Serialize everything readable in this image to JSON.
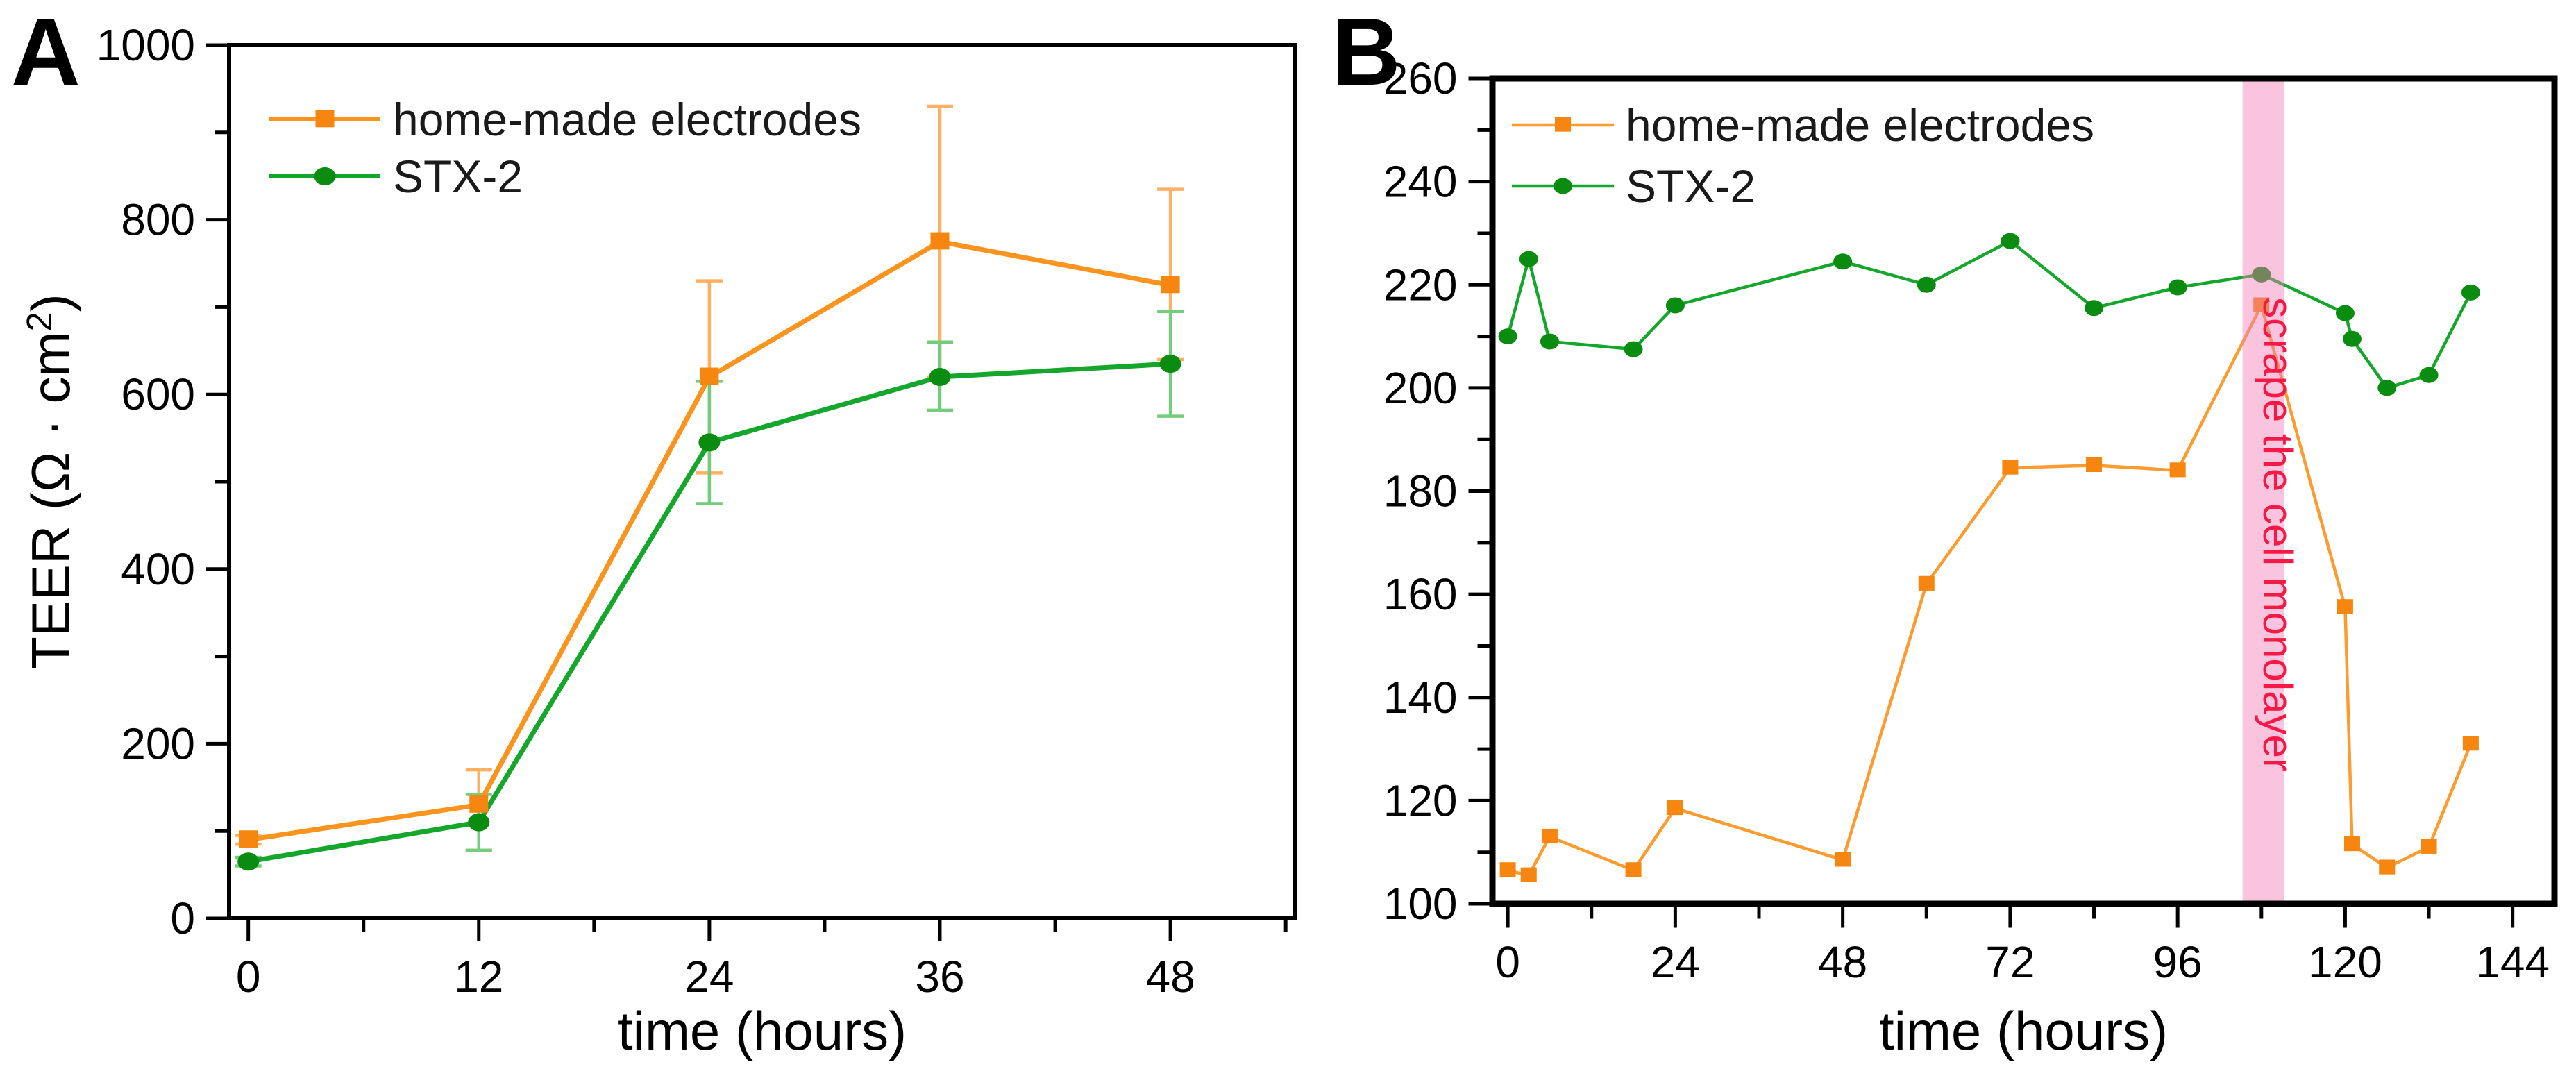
{
  "figure": {
    "background": "#ffffff",
    "panels": [
      {
        "label": "A"
      },
      {
        "label": "B"
      }
    ]
  },
  "chart_data": [
    {
      "type": "line",
      "panel": "A",
      "title": "",
      "xlabel": "time (hours)",
      "ylabel": "TEER (Ω · cm²)",
      "ylabel_parts": {
        "pre": "TEER (Ω · cm",
        "sup": "2",
        "post": ")"
      },
      "xlim": [
        -1,
        54.5
      ],
      "ylim": [
        0,
        1000
      ],
      "x_major_ticks": [
        0,
        12,
        24,
        36,
        48
      ],
      "x_minor_ticks": [
        6,
        18,
        30,
        42,
        54
      ],
      "y_major_ticks": [
        0,
        200,
        400,
        600,
        800,
        1000
      ],
      "y_minor_ticks": [
        100,
        300,
        500,
        700,
        900
      ],
      "grid": false,
      "legend_position": "top-left-inside",
      "legend": [
        "home-made electrodes",
        "STX-2"
      ],
      "series": [
        {
          "name": "home-made electrodes",
          "marker": "square",
          "color": "#f6860f",
          "line_color": "#fb941e",
          "err_color": "#ffb061",
          "x": [
            0,
            12,
            24,
            36,
            48
          ],
          "y": [
            90,
            130,
            620,
            775,
            725
          ],
          "err_up": [
            5,
            40,
            110,
            155,
            110
          ],
          "err_down": [
            5,
            52,
            110,
            155,
            85
          ]
        },
        {
          "name": "STX-2",
          "marker": "circle",
          "color": "#0a8c11",
          "line_color": "#15a62c",
          "err_color": "#74cd7c",
          "x": [
            0,
            12,
            24,
            36,
            48
          ],
          "y": [
            65,
            110,
            545,
            620,
            635
          ],
          "err_up": [
            5,
            32,
            70,
            40,
            60
          ],
          "err_down": [
            5,
            32,
            70,
            38,
            60
          ]
        }
      ]
    },
    {
      "type": "line",
      "panel": "B",
      "title": "",
      "xlabel": "time (hours)",
      "ylabel": "",
      "xlim": [
        -2.2,
        150
      ],
      "ylim": [
        100,
        260
      ],
      "x_major_ticks": [
        0,
        24,
        48,
        72,
        96,
        120,
        144
      ],
      "x_minor_ticks": [
        12,
        36,
        60,
        84,
        108,
        132
      ],
      "y_major_ticks": [
        100,
        120,
        140,
        160,
        180,
        200,
        220,
        240,
        260
      ],
      "y_minor_ticks": [
        110,
        130,
        150,
        170,
        190,
        210,
        230,
        250
      ],
      "grid": false,
      "legend_position": "top-left-inside",
      "legend": [
        "home-made electrodes",
        "STX-2"
      ],
      "band": {
        "x0": 105.3,
        "x1": 111.3,
        "color": "#f47cb6",
        "opacity": 0.45,
        "label": "scrape the cell monolayer",
        "label_color": "#f51945"
      },
      "series": [
        {
          "name": "home-made electrodes",
          "marker": "square",
          "color": "#f6860f",
          "line_color": "#fb9b30",
          "x": [
            0,
            3,
            6,
            18,
            24,
            48,
            60,
            72,
            84,
            96,
            108,
            120,
            121,
            126,
            132,
            138
          ],
          "y": [
            106.5,
            105.5,
            113,
            106.5,
            118.5,
            108.5,
            162,
            184.5,
            185,
            184,
            216,
            157.5,
            111.5,
            107,
            111,
            131
          ]
        },
        {
          "name": "STX-2",
          "marker": "circle",
          "color": "#0a8c11",
          "line_color": "#15a62c",
          "x": [
            0,
            3,
            6,
            18,
            24,
            48,
            60,
            72,
            84,
            96,
            108,
            120,
            121,
            126,
            132,
            138
          ],
          "y": [
            210,
            225,
            209,
            207.5,
            216,
            224.5,
            220,
            228.5,
            215.5,
            219.5,
            222,
            214.5,
            209.5,
            200,
            202.5,
            218.5
          ]
        }
      ]
    }
  ]
}
